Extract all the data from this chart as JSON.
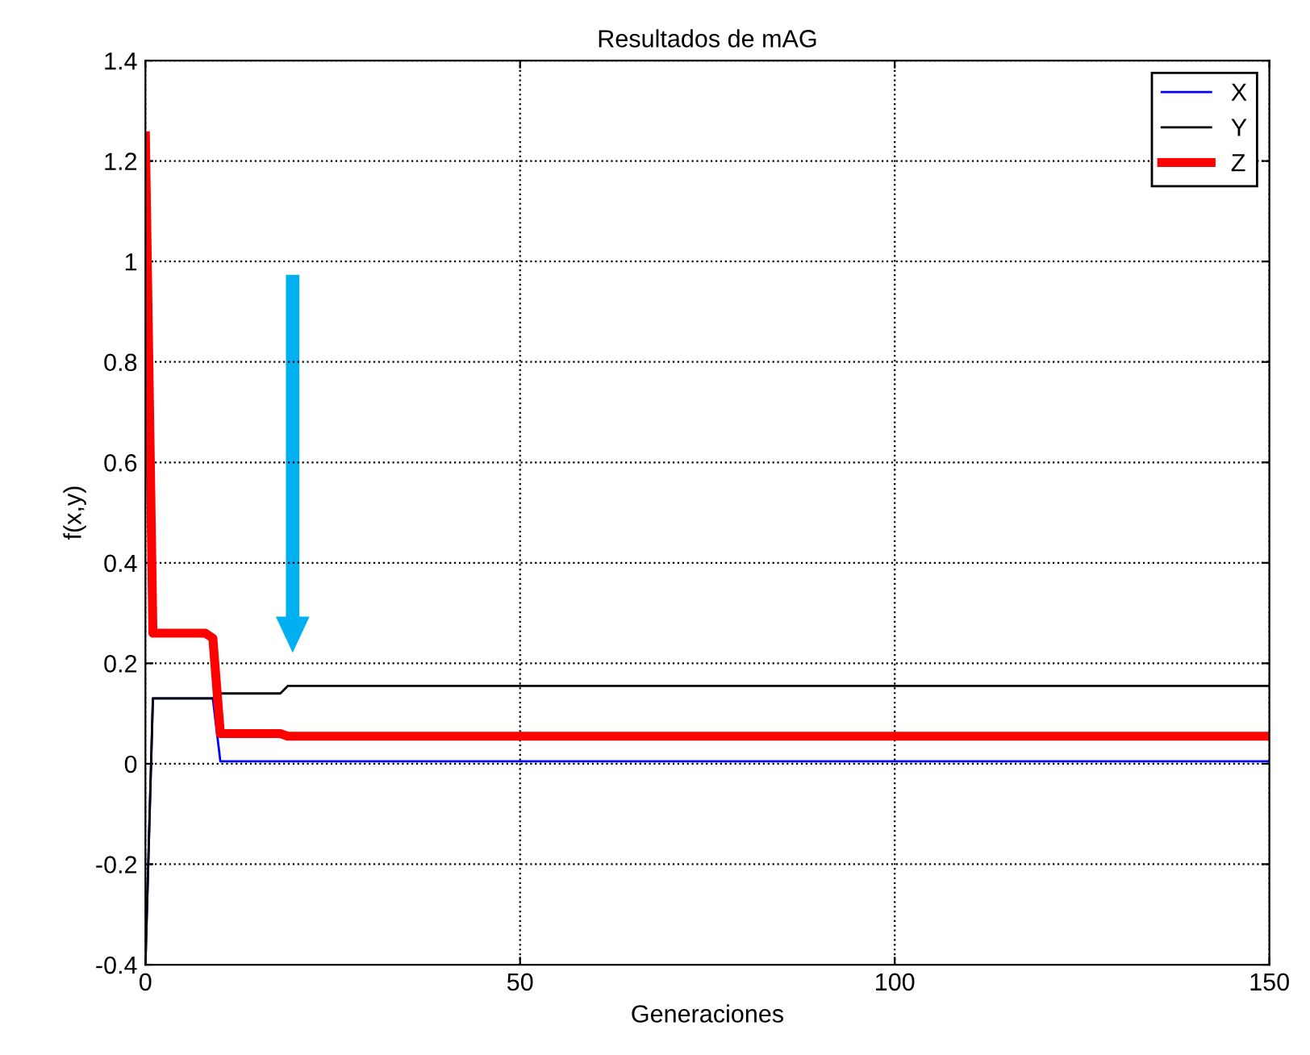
{
  "chart_data": {
    "type": "line",
    "title": "Resultados de mAG",
    "xlabel": "Generaciones",
    "ylabel": "f(x,y)",
    "series": [
      {
        "name": "X",
        "color": "#0000ff",
        "x": [
          0,
          1,
          9,
          10,
          150
        ],
        "values": [
          -0.4,
          0.13,
          0.13,
          0.005,
          0.005
        ]
      },
      {
        "name": "Y",
        "color": "#000000",
        "x": [
          0,
          1,
          9,
          10,
          18,
          19,
          150
        ],
        "values": [
          -0.4,
          0.13,
          0.13,
          0.14,
          0.14,
          0.155,
          0.155
        ]
      },
      {
        "name": "Z",
        "color": "#ff0000",
        "x": [
          0,
          1,
          8,
          9,
          10,
          18,
          19,
          150
        ],
        "values": [
          1.25,
          0.26,
          0.26,
          0.25,
          0.06,
          0.06,
          0.055,
          0.055
        ]
      }
    ],
    "xlim": [
      0,
      150
    ],
    "xticks": [
      0,
      50,
      100,
      150
    ],
    "ylim": [
      -0.4,
      1.4
    ],
    "yticks": [
      -0.4,
      -0.2,
      0,
      0.2,
      0.4,
      0.6,
      0.8,
      1,
      1.2,
      1.4
    ],
    "grid": true,
    "legend": "top right",
    "marker": "none",
    "line_style": "solid"
  }
}
